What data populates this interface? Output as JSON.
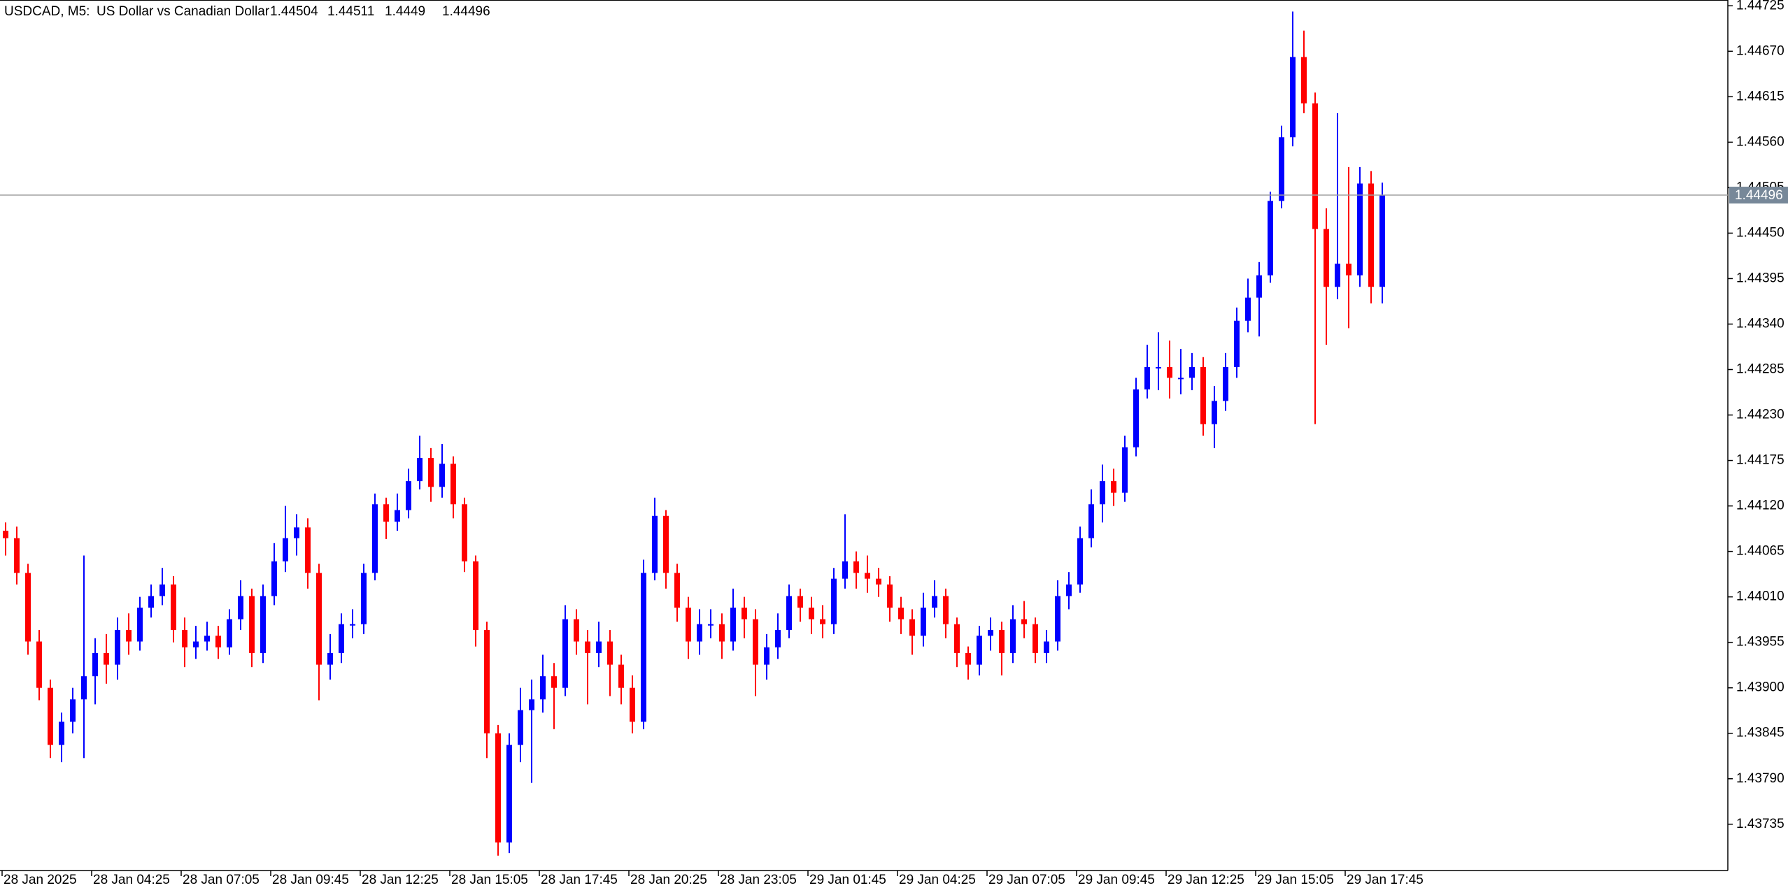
{
  "chart_data": {
    "type": "candlestick",
    "symbol": "USDCAD, M5:",
    "description": "US Dollar vs Canadian Dollar",
    "quote": [
      1.44504,
      1.44511,
      1.4449,
      1.44496
    ],
    "up_color": "#0000ff",
    "down_color": "#ff0000",
    "price_line": 1.44496,
    "ylim": [
      1.43679,
      1.44732
    ],
    "yticks": [
      1.44725,
      {
        "value": 1.4467,
        "label": "1.44670"
      },
      1.44615,
      {
        "value": 1.4456,
        "label": "1.44560"
      },
      1.44505,
      {
        "value": 1.4445,
        "label": "1.44450"
      },
      1.44395,
      {
        "value": 1.4434,
        "label": "1.44340"
      },
      1.44285,
      {
        "value": 1.4423,
        "label": "1.44230"
      },
      1.44175,
      {
        "value": 1.4412,
        "label": "1.44120"
      },
      1.44065,
      {
        "value": 1.4401,
        "label": "1.44010"
      },
      1.43955,
      {
        "value": 1.439,
        "label": "1.43900"
      },
      1.43845,
      {
        "value": 1.4379,
        "label": "1.43790"
      },
      1.43735
    ],
    "categories": [
      "28 Jan 2025",
      null,
      null,
      null,
      null,
      null,
      null,
      null,
      "28 Jan 04:25",
      null,
      null,
      null,
      null,
      null,
      null,
      null,
      "28 Jan 07:05",
      null,
      null,
      null,
      null,
      null,
      null,
      null,
      "28 Jan 09:45",
      null,
      null,
      null,
      null,
      null,
      null,
      null,
      "28 Jan 12:25",
      null,
      null,
      null,
      null,
      null,
      null,
      null,
      "28 Jan 15:05",
      null,
      null,
      null,
      null,
      null,
      null,
      null,
      "28 Jan 17:45",
      null,
      null,
      null,
      null,
      null,
      null,
      null,
      "28 Jan 20:25",
      null,
      null,
      null,
      null,
      null,
      null,
      null,
      "28 Jan 23:05",
      null,
      null,
      null,
      null,
      null,
      null,
      null,
      "29 Jan 01:45",
      null,
      null,
      null,
      null,
      null,
      null,
      null,
      "29 Jan 04:25",
      null,
      null,
      null,
      null,
      null,
      null,
      null,
      "29 Jan 07:05",
      null,
      null,
      null,
      null,
      null,
      null,
      null,
      "29 Jan 09:45",
      null,
      null,
      null,
      null,
      null,
      null,
      null,
      "29 Jan 12:25",
      null,
      null,
      null,
      null,
      null,
      null,
      null,
      "29 Jan 15:05",
      null,
      null,
      null,
      null,
      null,
      null,
      null,
      "29 Jan 17:45",
      null,
      null,
      null
    ],
    "open": [
      1.4409,
      1.44081,
      1.44039,
      1.43956,
      1.439,
      1.43831,
      1.43859,
      1.43886,
      1.43914,
      1.43942,
      1.43928,
      1.4397,
      1.43956,
      1.43997,
      1.44011,
      1.44025,
      1.4397,
      1.43949,
      1.43956,
      1.43963,
      1.43949,
      1.43983,
      1.44011,
      1.43942,
      1.44011,
      1.44053,
      1.44081,
      1.44094,
      1.44039,
      1.43928,
      1.43942,
      1.43977,
      1.43977,
      1.44039,
      1.44122,
      1.44101,
      1.44115,
      1.4415,
      1.44178,
      1.44143,
      1.44171,
      1.44122,
      1.44053,
      1.4397,
      1.43845,
      1.43713,
      1.43831,
      1.43873,
      1.43886,
      1.43914,
      1.439,
      1.43983,
      1.43956,
      1.43942,
      1.43956,
      1.43928,
      1.439,
      1.43859,
      1.44039,
      1.44108,
      1.44039,
      1.43997,
      1.43956,
      1.43977,
      1.43977,
      1.43956,
      1.43997,
      1.43983,
      1.43928,
      1.43949,
      1.4397,
      1.44011,
      1.43997,
      1.43983,
      1.43977,
      1.44032,
      1.44053,
      1.44039,
      1.44032,
      1.44025,
      1.43997,
      1.43983,
      1.43963,
      1.43997,
      1.44011,
      1.43977,
      1.43942,
      1.43928,
      1.43963,
      1.4397,
      1.43942,
      1.43983,
      1.43977,
      1.43942,
      1.43956,
      1.44011,
      1.44025,
      1.44081,
      1.44122,
      1.4415,
      1.44136,
      1.44191,
      1.44261,
      1.44288,
      1.44288,
      1.44275,
      1.44275,
      1.44288,
      1.44219,
      1.44247,
      1.44288,
      1.44344,
      1.44372,
      1.44399,
      1.44489,
      1.44566,
      1.44663,
      1.44607,
      1.44455,
      1.44385,
      1.44413,
      1.44399,
      1.4451,
      1.44385
    ],
    "high": [
      1.441,
      1.44095,
      1.4405,
      1.4397,
      1.4391,
      1.4387,
      1.439,
      1.4406,
      1.4396,
      1.43965,
      1.43985,
      1.4399,
      1.4401,
      1.44025,
      1.44045,
      1.44035,
      1.43985,
      1.43975,
      1.4398,
      1.43975,
      1.43995,
      1.4403,
      1.4402,
      1.44025,
      1.44075,
      1.4412,
      1.4411,
      1.44105,
      1.4405,
      1.43965,
      1.4399,
      1.43995,
      1.4405,
      1.44135,
      1.4413,
      1.44135,
      1.44165,
      1.44205,
      1.4419,
      1.44195,
      1.4418,
      1.4413,
      1.4406,
      1.4398,
      1.43855,
      1.43845,
      1.439,
      1.4391,
      1.4394,
      1.4393,
      1.44,
      1.43995,
      1.4397,
      1.4398,
      1.4397,
      1.4394,
      1.43915,
      1.44055,
      1.4413,
      1.44115,
      1.4405,
      1.4401,
      1.43995,
      1.43995,
      1.4399,
      1.4402,
      1.4401,
      1.43995,
      1.43965,
      1.4399,
      1.44025,
      1.4402,
      1.4401,
      1.44,
      1.44045,
      1.4411,
      1.44065,
      1.4406,
      1.44045,
      1.44035,
      1.4401,
      1.43995,
      1.44015,
      1.4403,
      1.4402,
      1.43985,
      1.4395,
      1.43975,
      1.43985,
      1.4398,
      1.44,
      1.44005,
      1.43985,
      1.4397,
      1.4403,
      1.4404,
      1.44095,
      1.4414,
      1.4417,
      1.44165,
      1.44205,
      1.44275,
      1.44315,
      1.4433,
      1.4432,
      1.4431,
      1.44305,
      1.443,
      1.44265,
      1.44305,
      1.4436,
      1.44395,
      1.44415,
      1.445,
      1.4458,
      1.44718,
      1.44695,
      1.4462,
      1.4448,
      1.44595,
      1.4453,
      1.4453,
      1.44525,
      1.44511
    ],
    "low": [
      1.4406,
      1.44025,
      1.4394,
      1.43885,
      1.43815,
      1.4381,
      1.43845,
      1.43815,
      1.4388,
      1.43905,
      1.4391,
      1.4394,
      1.43945,
      1.43985,
      1.44,
      1.43955,
      1.43925,
      1.43935,
      1.43945,
      1.43935,
      1.4394,
      1.4397,
      1.43925,
      1.4393,
      1.44,
      1.4404,
      1.4406,
      1.4402,
      1.43885,
      1.4391,
      1.4393,
      1.4396,
      1.43965,
      1.4403,
      1.4408,
      1.4409,
      1.44105,
      1.4414,
      1.44125,
      1.4413,
      1.44105,
      1.4404,
      1.4395,
      1.43815,
      1.43697,
      1.437,
      1.4381,
      1.43785,
      1.4387,
      1.4385,
      1.4389,
      1.4394,
      1.4388,
      1.43925,
      1.4389,
      1.4388,
      1.43845,
      1.4385,
      1.4403,
      1.4402,
      1.4398,
      1.43935,
      1.4394,
      1.4396,
      1.43935,
      1.43945,
      1.4396,
      1.4389,
      1.4391,
      1.43935,
      1.4396,
      1.4398,
      1.43965,
      1.4396,
      1.43965,
      1.4402,
      1.4402,
      1.44015,
      1.4401,
      1.4398,
      1.43965,
      1.4394,
      1.4395,
      1.43985,
      1.4396,
      1.43925,
      1.4391,
      1.43915,
      1.43945,
      1.43915,
      1.4393,
      1.4396,
      1.4393,
      1.4393,
      1.43945,
      1.43995,
      1.44015,
      1.4407,
      1.441,
      1.4412,
      1.44125,
      1.4418,
      1.4425,
      1.4426,
      1.4425,
      1.44255,
      1.4426,
      1.44205,
      1.4419,
      1.44235,
      1.44275,
      1.4433,
      1.44325,
      1.4439,
      1.4448,
      1.44555,
      1.44595,
      1.44219,
      1.44315,
      1.4437,
      1.44335,
      1.44385,
      1.44365,
      1.44365
    ],
    "close": [
      1.44081,
      1.44039,
      1.43956,
      1.439,
      1.43831,
      1.43859,
      1.43886,
      1.43914,
      1.43942,
      1.43928,
      1.4397,
      1.43956,
      1.43997,
      1.44011,
      1.44025,
      1.4397,
      1.43949,
      1.43956,
      1.43963,
      1.43949,
      1.43983,
      1.44011,
      1.43942,
      1.44011,
      1.44053,
      1.44081,
      1.44094,
      1.44039,
      1.43928,
      1.43942,
      1.43977,
      1.43977,
      1.44039,
      1.44122,
      1.44101,
      1.44115,
      1.4415,
      1.44178,
      1.44143,
      1.44171,
      1.44122,
      1.44053,
      1.4397,
      1.43845,
      1.43713,
      1.43831,
      1.43873,
      1.43886,
      1.43914,
      1.439,
      1.43983,
      1.43956,
      1.43942,
      1.43956,
      1.43928,
      1.439,
      1.43859,
      1.44039,
      1.44108,
      1.44039,
      1.43997,
      1.43956,
      1.43977,
      1.43977,
      1.43956,
      1.43997,
      1.43983,
      1.43928,
      1.43949,
      1.4397,
      1.44011,
      1.43997,
      1.43983,
      1.43977,
      1.44032,
      1.44053,
      1.44039,
      1.44032,
      1.44025,
      1.43997,
      1.43983,
      1.43963,
      1.43997,
      1.44011,
      1.43977,
      1.43942,
      1.43928,
      1.43963,
      1.4397,
      1.43942,
      1.43983,
      1.43977,
      1.43942,
      1.43956,
      1.44011,
      1.44025,
      1.44081,
      1.44122,
      1.4415,
      1.44136,
      1.44191,
      1.44261,
      1.44288,
      1.44288,
      1.44275,
      1.44275,
      1.44288,
      1.44219,
      1.44247,
      1.44288,
      1.44344,
      1.44372,
      1.44399,
      1.44489,
      1.44566,
      1.44663,
      1.44607,
      1.44455,
      1.44385,
      1.44413,
      1.44399,
      1.4451,
      1.44385,
      1.44496
    ]
  }
}
